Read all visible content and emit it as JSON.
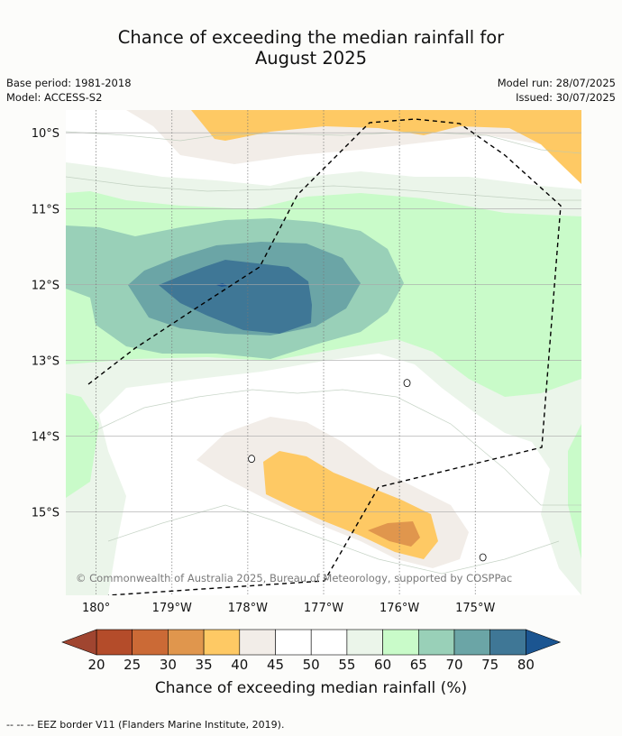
{
  "header": {
    "title_line1": "Chance of exceeding the median rainfall for",
    "title_line2": "August 2025",
    "base_period": "Base period: 1981-2018",
    "model": "Model: ACCESS-S2",
    "model_run": "Model run: 28/07/2025",
    "issued": "Issued: 30/07/2025"
  },
  "map": {
    "extent": {
      "lon_min": 179.6,
      "lon_max": 186.4,
      "lat_min": -16.1,
      "lat_max": -9.7
    },
    "lat_ticks": [
      {
        "value": -10,
        "label": "10°S"
      },
      {
        "value": -11,
        "label": "11°S"
      },
      {
        "value": -12,
        "label": "12°S"
      },
      {
        "value": -13,
        "label": "13°S"
      },
      {
        "value": -14,
        "label": "14°S"
      },
      {
        "value": -15,
        "label": "15°S"
      }
    ],
    "lon_ticks": [
      {
        "value": 180,
        "label": "180°"
      },
      {
        "value": 181,
        "label": "179°W"
      },
      {
        "value": 182,
        "label": "178°W"
      },
      {
        "value": 183,
        "label": "177°W"
      },
      {
        "value": 184,
        "label": "176°W"
      },
      {
        "value": 185,
        "label": "175°W"
      }
    ],
    "attribution": "© Commonwealth of Australia 2025, Bureau of Meteorology, supported by COSPPac",
    "background_color": "#c9fbc9",
    "islands": [
      {
        "lon": 182.05,
        "lat": -14.3
      },
      {
        "lon": 184.1,
        "lat": -13.3
      },
      {
        "lon": 185.1,
        "lat": -15.6
      }
    ]
  },
  "colorbar": {
    "ticks": [
      "20",
      "25",
      "30",
      "35",
      "40",
      "45",
      "50",
      "55",
      "60",
      "65",
      "70",
      "75",
      "80"
    ],
    "colors": [
      "#b44c2a",
      "#cb6a36",
      "#e0964d",
      "#fec964",
      "#f2ede8",
      "#ffffff",
      "#ffffff",
      "#ebf5ea",
      "#c9fbc9",
      "#99d0b8",
      "#6ba5a6",
      "#3f7796"
    ],
    "under_color": "#a04530",
    "over_color": "#1b5591",
    "label": "Chance of exceeding median rainfall (%)"
  },
  "footnote": "--  --  -- EEZ border V11 (Flanders Marine Institute, 2019)."
}
